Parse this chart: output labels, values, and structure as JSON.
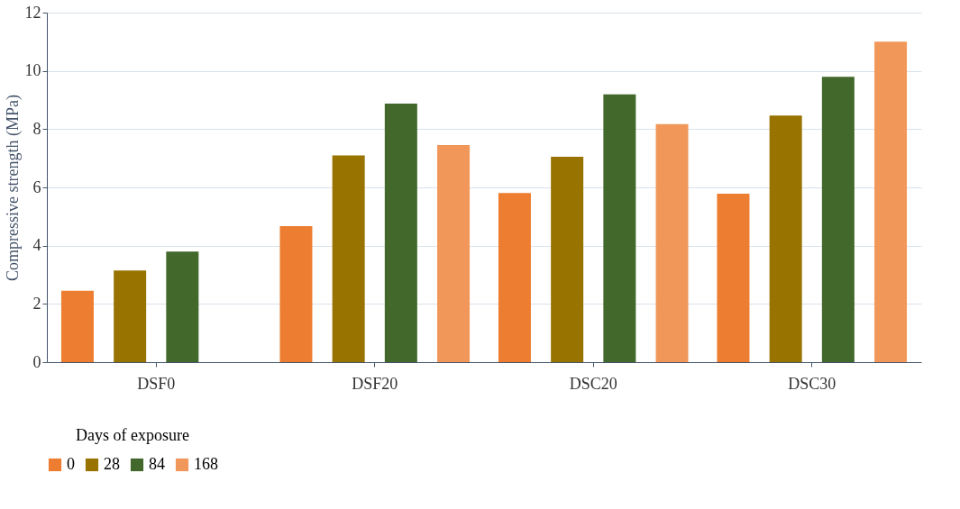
{
  "chart_data": {
    "type": "bar",
    "ylabel": "Compressive strength (MPa)",
    "legend_title": "Days of exposure",
    "categories": [
      "DSF0",
      "DSF20",
      "DSC20",
      "DSC30"
    ],
    "series": [
      {
        "name": "0",
        "color": "#ed7d31",
        "values": [
          2.45,
          4.67,
          5.81,
          5.78
        ]
      },
      {
        "name": "28",
        "color": "#987300",
        "values": [
          3.15,
          7.1,
          7.05,
          8.47
        ]
      },
      {
        "name": "84",
        "color": "#43682b",
        "values": [
          3.8,
          8.88,
          9.19,
          9.8
        ]
      },
      {
        "name": "168",
        "color": "#f1975a",
        "values": [
          null,
          7.45,
          8.17,
          11.0
        ]
      }
    ],
    "ylim": [
      0,
      12
    ],
    "yticks": [
      0,
      2,
      4,
      6,
      8,
      10,
      12
    ],
    "grid": "y",
    "legend": "bottom"
  }
}
